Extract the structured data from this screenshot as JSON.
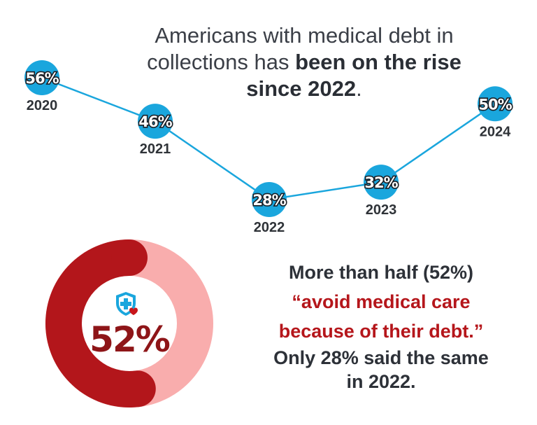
{
  "headline": {
    "part1": "Americans with medical debt in collections has ",
    "bold": "been on the rise since 2022",
    "end": "."
  },
  "chart_data": [
    {
      "type": "line",
      "x": [
        "2020",
        "2021",
        "2022",
        "2023",
        "2024"
      ],
      "values": [
        56,
        46,
        28,
        32,
        50
      ],
      "data_labels": [
        "56%",
        "46%",
        "28%",
        "32%",
        "50%"
      ],
      "title": "Americans with medical debt in collections has been on the rise since 2022.",
      "unit": "%"
    },
    {
      "type": "pie",
      "values": [
        52,
        48
      ],
      "center_label": "52%"
    }
  ],
  "stat": {
    "line1": "More than half (52%)",
    "line2": "“avoid medical care",
    "line3": "because of their debt.”",
    "line4": "Only 28% said the same",
    "line5": "in 2022."
  },
  "colors": {
    "line": "#1aa6dd",
    "marker": "#1aa6dd",
    "donut_primary": "#b3161b",
    "donut_secondary": "#f9adad",
    "accent_text": "#b5161b"
  },
  "icons": {
    "donut_icon": "shield-medical-cross-heart-icon"
  }
}
